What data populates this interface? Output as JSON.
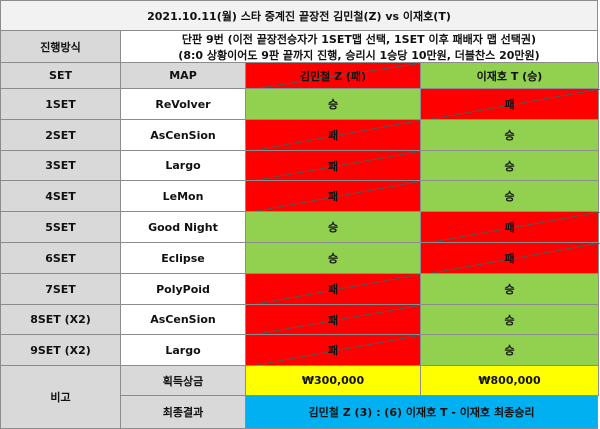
{
  "title": "2021.10.11(월) 스타 중계진 끝장전 김민철(Z) vs 이재호(T)",
  "method": {
    "label": "진행방식",
    "lines": [
      "단판 9번 (이전 끝장전승자가 1SET맵 선택, 1SET 이후 패배자 맵 선택권)",
      "(8:0 상황이어도 9판 끝까지 진행, 승리시 1승당 10만원, 더블찬스 20만원)"
    ]
  },
  "header": {
    "set": "SET",
    "map": "MAP",
    "players": [
      {
        "text": "김민철 Z (패)",
        "fill": "#ff0000",
        "slash": true
      },
      {
        "text": "이재호 T (승)",
        "fill": "#92d050",
        "slash": false
      }
    ]
  },
  "rows": [
    {
      "set": "1SET",
      "map": "ReVolver",
      "cells": [
        {
          "text": "승",
          "fill": "#92d050",
          "slash": false
        },
        {
          "text": "패",
          "fill": "#ff0000",
          "slash": true
        }
      ]
    },
    {
      "set": "2SET",
      "map": "AsCenSion",
      "cells": [
        {
          "text": "패",
          "fill": "#ff0000",
          "slash": true
        },
        {
          "text": "승",
          "fill": "#92d050",
          "slash": false
        }
      ]
    },
    {
      "set": "3SET",
      "map": "Largo",
      "cells": [
        {
          "text": "패",
          "fill": "#ff0000",
          "slash": true
        },
        {
          "text": "승",
          "fill": "#92d050",
          "slash": false
        }
      ]
    },
    {
      "set": "4SET",
      "map": "LeMon",
      "cells": [
        {
          "text": "패",
          "fill": "#ff0000",
          "slash": true
        },
        {
          "text": "승",
          "fill": "#92d050",
          "slash": false
        }
      ]
    },
    {
      "set": "5SET",
      "map": "Good Night",
      "cells": [
        {
          "text": "승",
          "fill": "#92d050",
          "slash": false
        },
        {
          "text": "패",
          "fill": "#ff0000",
          "slash": true
        }
      ]
    },
    {
      "set": "6SET",
      "map": "Eclipse",
      "cells": [
        {
          "text": "승",
          "fill": "#92d050",
          "slash": false
        },
        {
          "text": "패",
          "fill": "#ff0000",
          "slash": true
        }
      ]
    },
    {
      "set": "7SET",
      "map": "PolyPoid",
      "cells": [
        {
          "text": "패",
          "fill": "#ff0000",
          "slash": true
        },
        {
          "text": "승",
          "fill": "#92d050",
          "slash": false
        }
      ]
    },
    {
      "set": "8SET (X2)",
      "map": "AsCenSion",
      "cells": [
        {
          "text": "패",
          "fill": "#ff0000",
          "slash": true
        },
        {
          "text": "승",
          "fill": "#92d050",
          "slash": false
        }
      ]
    },
    {
      "set": "9SET (X2)",
      "map": "Largo",
      "cells": [
        {
          "text": "패",
          "fill": "#ff0000",
          "slash": true
        },
        {
          "text": "승",
          "fill": "#92d050",
          "slash": false
        }
      ]
    }
  ],
  "remarks": {
    "label": "비고",
    "prize_label": "획득상금",
    "prizes": [
      "₩300,000",
      "₩800,000"
    ],
    "prize_fill": "#ffff00",
    "result_label": "최종결과",
    "result": "김민철 Z (3) : (6) 이재호 T - 이재호 최종승리",
    "result_fill": "#00b0f0"
  }
}
